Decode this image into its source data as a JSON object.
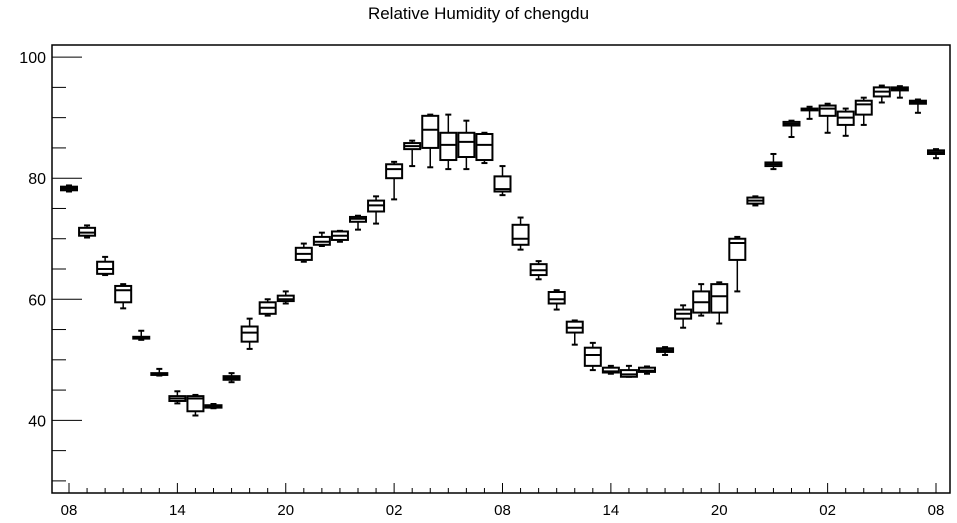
{
  "chart_data": {
    "type": "box",
    "title": "Relative Humidity of chengdu",
    "xlabel": "",
    "ylabel": "",
    "ylim": [
      28,
      102
    ],
    "y_ticks": [
      40,
      60,
      80,
      100
    ],
    "x_tick_labels": [
      "08",
      "14",
      "20",
      "02",
      "08",
      "14",
      "20",
      "02",
      "08"
    ],
    "x_tick_hours": [
      0,
      6,
      12,
      18,
      24,
      30,
      36,
      42,
      48
    ],
    "grid": false,
    "boxes": [
      {
        "hour": 0,
        "min": 77.8,
        "q1": 78.0,
        "median": 78.3,
        "q3": 78.6,
        "max": 78.8
      },
      {
        "hour": 1,
        "min": 70.2,
        "q1": 70.5,
        "median": 71.0,
        "q3": 71.8,
        "max": 72.2
      },
      {
        "hour": 2,
        "min": 64.0,
        "q1": 64.2,
        "median": 65.0,
        "q3": 66.2,
        "max": 67.0
      },
      {
        "hour": 3,
        "min": 58.5,
        "q1": 59.5,
        "median": 61.5,
        "q3": 62.2,
        "max": 62.5
      },
      {
        "hour": 4,
        "min": 53.3,
        "q1": 53.5,
        "median": 53.7,
        "q3": 53.8,
        "max": 54.8
      },
      {
        "hour": 5,
        "min": 47.4,
        "q1": 47.5,
        "median": 47.7,
        "q3": 47.8,
        "max": 48.5
      },
      {
        "hour": 6,
        "min": 42.8,
        "q1": 43.2,
        "median": 43.6,
        "q3": 44.0,
        "max": 44.8
      },
      {
        "hour": 7,
        "min": 40.8,
        "q1": 41.5,
        "median": 43.6,
        "q3": 44.0,
        "max": 44.2
      },
      {
        "hour": 8,
        "min": 42.0,
        "q1": 42.1,
        "median": 42.3,
        "q3": 42.5,
        "max": 42.7
      },
      {
        "hour": 9,
        "min": 46.3,
        "q1": 46.7,
        "median": 47.0,
        "q3": 47.3,
        "max": 47.8
      },
      {
        "hour": 10,
        "min": 51.8,
        "q1": 53.0,
        "median": 54.5,
        "q3": 55.5,
        "max": 56.8
      },
      {
        "hour": 11,
        "min": 57.3,
        "q1": 57.6,
        "median": 58.6,
        "q3": 59.5,
        "max": 60.0
      },
      {
        "hour": 12,
        "min": 59.3,
        "q1": 59.7,
        "median": 60.0,
        "q3": 60.6,
        "max": 61.3
      },
      {
        "hour": 13,
        "min": 66.2,
        "q1": 66.5,
        "median": 67.5,
        "q3": 68.5,
        "max": 69.2
      },
      {
        "hour": 14,
        "min": 68.8,
        "q1": 69.0,
        "median": 69.5,
        "q3": 70.3,
        "max": 71.0
      },
      {
        "hour": 15,
        "min": 69.5,
        "q1": 69.8,
        "median": 70.5,
        "q3": 71.2,
        "max": 71.3
      },
      {
        "hour": 16,
        "min": 71.5,
        "q1": 72.8,
        "median": 73.3,
        "q3": 73.6,
        "max": 73.8
      },
      {
        "hour": 17,
        "min": 72.5,
        "q1": 74.5,
        "median": 75.5,
        "q3": 76.3,
        "max": 77.0
      },
      {
        "hour": 18,
        "min": 76.5,
        "q1": 80.0,
        "median": 81.5,
        "q3": 82.3,
        "max": 82.7
      },
      {
        "hour": 19,
        "min": 82.0,
        "q1": 84.8,
        "median": 85.3,
        "q3": 85.8,
        "max": 86.2
      },
      {
        "hour": 20,
        "min": 81.8,
        "q1": 85.0,
        "median": 88.0,
        "q3": 90.3,
        "max": 90.5
      },
      {
        "hour": 21,
        "min": 81.5,
        "q1": 83.0,
        "median": 85.5,
        "q3": 87.5,
        "max": 90.5
      },
      {
        "hour": 22,
        "min": 81.5,
        "q1": 83.5,
        "median": 86.0,
        "q3": 87.5,
        "max": 89.5
      },
      {
        "hour": 23,
        "min": 82.5,
        "q1": 83.0,
        "median": 85.5,
        "q3": 87.3,
        "max": 87.5
      },
      {
        "hour": 24,
        "min": 77.2,
        "q1": 77.8,
        "median": 78.2,
        "q3": 80.3,
        "max": 82.0
      },
      {
        "hour": 25,
        "min": 68.2,
        "q1": 69.0,
        "median": 70.0,
        "q3": 72.3,
        "max": 73.5
      },
      {
        "hour": 26,
        "min": 63.3,
        "q1": 64.0,
        "median": 64.8,
        "q3": 65.8,
        "max": 66.3
      },
      {
        "hour": 27,
        "min": 58.3,
        "q1": 59.3,
        "median": 60.0,
        "q3": 61.2,
        "max": 61.5
      },
      {
        "hour": 28,
        "min": 52.5,
        "q1": 54.5,
        "median": 55.3,
        "q3": 56.3,
        "max": 56.5
      },
      {
        "hour": 29,
        "min": 48.3,
        "q1": 49.0,
        "median": 50.8,
        "q3": 52.0,
        "max": 52.8
      },
      {
        "hour": 30,
        "min": 47.7,
        "q1": 47.9,
        "median": 48.1,
        "q3": 48.7,
        "max": 49.0
      },
      {
        "hour": 31,
        "min": 47.2,
        "q1": 47.2,
        "median": 47.6,
        "q3": 48.3,
        "max": 49.0
      },
      {
        "hour": 32,
        "min": 47.7,
        "q1": 48.0,
        "median": 48.2,
        "q3": 48.7,
        "max": 48.9
      },
      {
        "hour": 33,
        "min": 50.8,
        "q1": 51.3,
        "median": 51.6,
        "q3": 51.9,
        "max": 52.1
      },
      {
        "hour": 34,
        "min": 55.3,
        "q1": 56.8,
        "median": 57.6,
        "q3": 58.3,
        "max": 59.0
      },
      {
        "hour": 35,
        "min": 57.3,
        "q1": 57.8,
        "median": 59.5,
        "q3": 61.3,
        "max": 62.5
      },
      {
        "hour": 36,
        "min": 56.0,
        "q1": 57.8,
        "median": 60.5,
        "q3": 62.5,
        "max": 62.8
      },
      {
        "hour": 37,
        "min": 61.3,
        "q1": 66.5,
        "median": 69.3,
        "q3": 70.0,
        "max": 70.3
      },
      {
        "hour": 38,
        "min": 75.5,
        "q1": 75.8,
        "median": 76.3,
        "q3": 76.8,
        "max": 77.0
      },
      {
        "hour": 39,
        "min": 81.5,
        "q1": 82.0,
        "median": 82.3,
        "q3": 82.6,
        "max": 84.0
      },
      {
        "hour": 40,
        "min": 86.8,
        "q1": 88.7,
        "median": 89.0,
        "q3": 89.3,
        "max": 89.5
      },
      {
        "hour": 41,
        "min": 89.8,
        "q1": 91.2,
        "median": 91.3,
        "q3": 91.5,
        "max": 91.8
      },
      {
        "hour": 42,
        "min": 87.5,
        "q1": 90.3,
        "median": 91.5,
        "q3": 92.0,
        "max": 92.3
      },
      {
        "hour": 43,
        "min": 87.0,
        "q1": 88.8,
        "median": 90.0,
        "q3": 91.0,
        "max": 91.5
      },
      {
        "hour": 44,
        "min": 88.8,
        "q1": 90.5,
        "median": 92.2,
        "q3": 92.8,
        "max": 93.3
      },
      {
        "hour": 45,
        "min": 92.5,
        "q1": 93.5,
        "median": 94.3,
        "q3": 95.0,
        "max": 95.3
      },
      {
        "hour": 46,
        "min": 93.3,
        "q1": 94.5,
        "median": 94.8,
        "q3": 95.0,
        "max": 95.2
      },
      {
        "hour": 47,
        "min": 90.8,
        "q1": 92.3,
        "median": 92.5,
        "q3": 92.8,
        "max": 93.0
      },
      {
        "hour": 48,
        "min": 83.3,
        "q1": 84.0,
        "median": 84.3,
        "q3": 84.6,
        "max": 84.8
      }
    ],
    "colors": {
      "line": "#000000",
      "box_fill": "#ffffff",
      "background": "#ffffff"
    }
  }
}
